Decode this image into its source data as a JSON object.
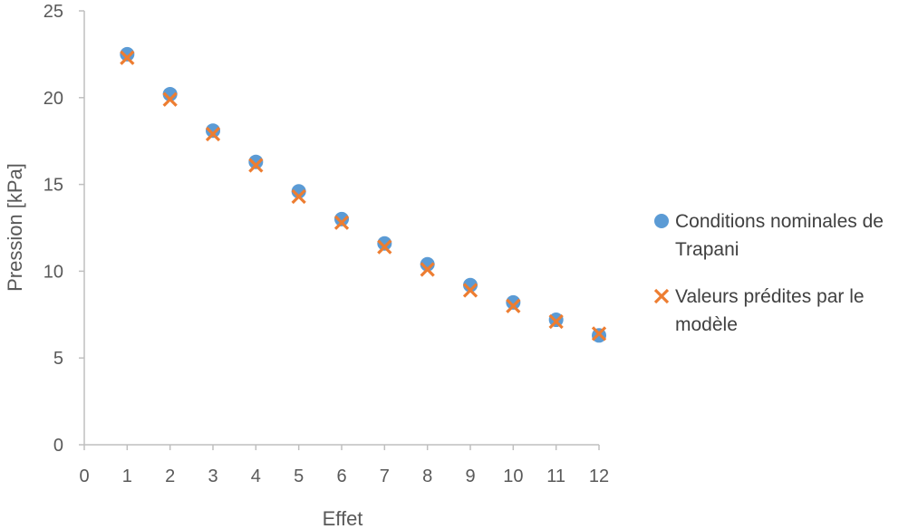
{
  "chart_data": {
    "type": "scatter",
    "title": "",
    "xlabel": "Effet",
    "ylabel": "Pression [kPa]",
    "xlim": [
      0,
      12
    ],
    "ylim": [
      0,
      25
    ],
    "x_ticks": [
      0,
      1,
      2,
      3,
      4,
      5,
      6,
      7,
      8,
      9,
      10,
      11,
      12
    ],
    "y_ticks": [
      0,
      5,
      10,
      15,
      20,
      25
    ],
    "grid": false,
    "legend_position": "right",
    "series": [
      {
        "name_lines": [
          "Conditions nominales de",
          "Trapani"
        ],
        "marker": "circle",
        "color": "#5B9BD5",
        "x": [
          1,
          2,
          3,
          4,
          5,
          6,
          7,
          8,
          9,
          10,
          11,
          12
        ],
        "y": [
          22.5,
          20.2,
          18.1,
          16.3,
          14.6,
          13.0,
          11.6,
          10.4,
          9.2,
          8.2,
          7.2,
          6.3
        ]
      },
      {
        "name_lines": [
          "Valeurs prédites par le",
          "modèle"
        ],
        "marker": "x",
        "color": "#ED7D31",
        "x": [
          1,
          2,
          3,
          4,
          5,
          6,
          7,
          8,
          9,
          10,
          11,
          12
        ],
        "y": [
          22.3,
          19.9,
          17.9,
          16.1,
          14.3,
          12.8,
          11.4,
          10.1,
          8.9,
          8.0,
          7.1,
          6.4
        ]
      }
    ]
  }
}
